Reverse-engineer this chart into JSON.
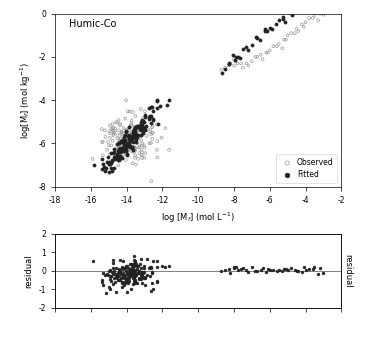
{
  "title": "Humic-Co",
  "xlabel": "log [M_f] (mol L^-1)",
  "ylabel": "log[M_f] (mol kg^-1)",
  "ylabel_residual": "residual",
  "ylabel_residual_right": "residual",
  "xlim": [
    -18,
    -2
  ],
  "ylim_main": [
    -8,
    0
  ],
  "ylim_residual": [
    -2,
    2
  ],
  "xticks": [
    -18,
    -16,
    -14,
    -12,
    -10,
    -8,
    -6,
    -4,
    -2
  ],
  "yticks_main": [
    -8,
    -6,
    -4,
    -2,
    0
  ],
  "yticks_residual": [
    -2,
    -1,
    0,
    1,
    2
  ],
  "legend_observed": "Observed",
  "legend_fitted": "Fitted",
  "background_color": "#ffffff",
  "scatter_color_observed": "#999999",
  "scatter_color_fitted": "#222222"
}
